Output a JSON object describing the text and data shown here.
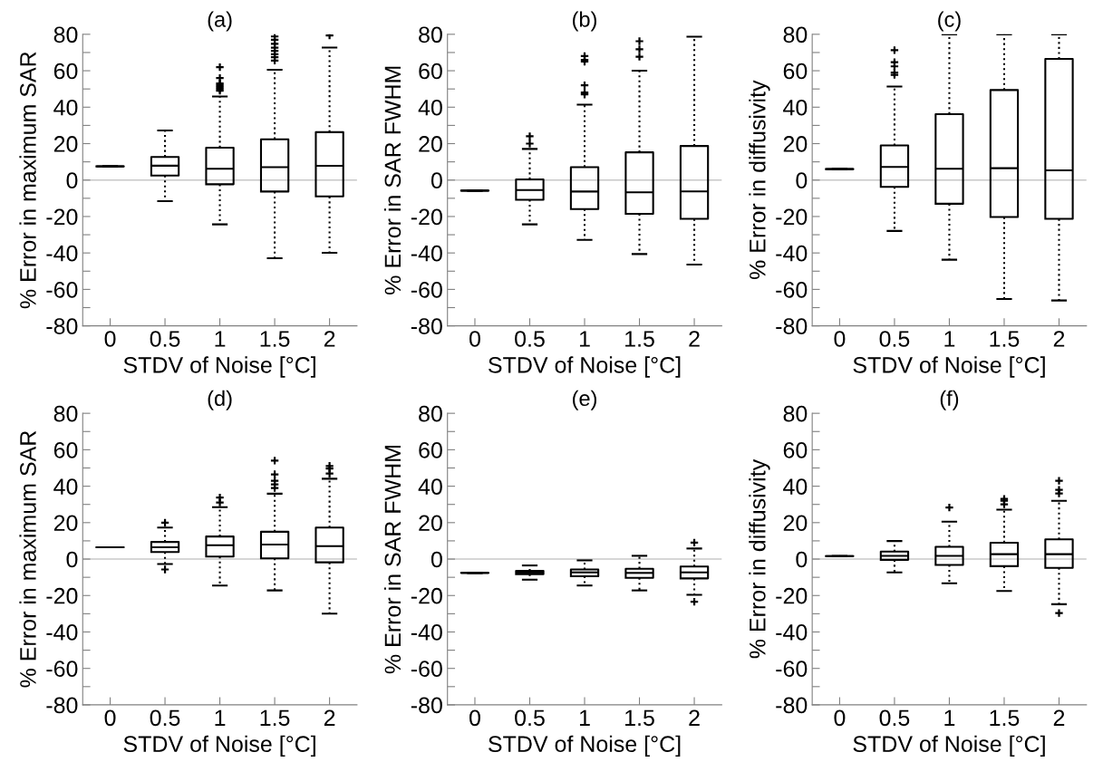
{
  "chart_data": [
    {
      "type": "box",
      "title": "(a)",
      "xlabel": "STDV of Noise [°C]",
      "ylabel": "% Error in maximum SAR",
      "categories": [
        "0",
        "0.5",
        "1",
        "1.5",
        "2"
      ],
      "ylim": [
        -80,
        80
      ],
      "yticks": [
        -80,
        {
          "value": -70,
          "label": null
        },
        -60,
        {
          "value": -50,
          "label": null
        },
        -40,
        {
          "value": -30,
          "label": null
        },
        -20,
        {
          "value": -10,
          "label": null
        },
        0,
        {
          "value": 10,
          "label": null
        },
        20,
        {
          "value": 30,
          "label": null
        },
        40,
        {
          "value": 50,
          "label": null
        },
        60,
        {
          "value": 70,
          "label": null
        },
        80
      ],
      "ref_lines": [
        {
          "axis": "y",
          "value": 0,
          "color": "#c8c8c8"
        }
      ],
      "marker": "cross",
      "grid": false,
      "boxes": [
        {
          "low": 7.5,
          "q1": 7.5,
          "median": 7.5,
          "q3": 7.5,
          "high": 7.5
        },
        {
          "low": -11.6,
          "q1": 2.5,
          "median": 7.9,
          "q3": 12.7,
          "high": 27.2
        },
        {
          "low": -24.3,
          "q1": -2.3,
          "median": 6.2,
          "q3": 17.8,
          "high": 45.9,
          "outliers": [
            49,
            50,
            51,
            52,
            53,
            56,
            62
          ]
        },
        {
          "low": -42.9,
          "q1": -6.3,
          "median": 7.1,
          "q3": 22.4,
          "high": 60.5,
          "outliers": [
            65.6,
            67.4,
            69.1,
            70.9,
            72.7,
            74.8,
            77,
            78.8
          ]
        },
        {
          "low": -39.9,
          "q1": -9,
          "median": 7.8,
          "q3": 26.3,
          "high": 72.7,
          "outliers": [
            79.4
          ]
        }
      ]
    },
    {
      "type": "box",
      "title": "(b)",
      "xlabel": "STDV of Noise [°C]",
      "ylabel": "% Error in SAR FWHM",
      "categories": [
        "0",
        "0.5",
        "1",
        "1.5",
        "2"
      ],
      "ylim": [
        -80,
        80
      ],
      "yticks": [
        -80,
        {
          "value": -70,
          "label": null
        },
        -60,
        {
          "value": -50,
          "label": null
        },
        -40,
        {
          "value": -30,
          "label": null
        },
        -20,
        {
          "value": -10,
          "label": null
        },
        0,
        {
          "value": 10,
          "label": null
        },
        20,
        {
          "value": 30,
          "label": null
        },
        40,
        {
          "value": 50,
          "label": null
        },
        60,
        {
          "value": 70,
          "label": null
        },
        80
      ],
      "ref_lines": [
        {
          "axis": "y",
          "value": 0,
          "color": "#c8c8c8"
        }
      ],
      "marker": "cross",
      "grid": false,
      "boxes": [
        {
          "low": -5.8,
          "q1": -5.8,
          "median": -5.8,
          "q3": -5.8,
          "high": -5.8
        },
        {
          "low": -24.3,
          "q1": -10.8,
          "median": -5.5,
          "q3": 0.4,
          "high": 17.1,
          "outliers": [
            20,
            24
          ]
        },
        {
          "low": -32.8,
          "q1": -15.9,
          "median": -6.3,
          "q3": 7.1,
          "high": 41.4,
          "outliers": [
            47,
            48,
            52,
            65,
            66,
            68
          ]
        },
        {
          "low": -40.6,
          "q1": -18.5,
          "median": -6.7,
          "q3": 15.2,
          "high": 60,
          "outliers": [
            67.7,
            71.8,
            76.2
          ]
        },
        {
          "low": -46.4,
          "q1": -21.3,
          "median": -6.2,
          "q3": 18.7,
          "high": 78.7
        }
      ]
    },
    {
      "type": "box",
      "title": "(c)",
      "xlabel": "STDV of Noise [°C]",
      "ylabel": "% Error in diffusivity",
      "categories": [
        "0",
        "0.5",
        "1",
        "1.5",
        "2"
      ],
      "ylim": [
        -80,
        80
      ],
      "yticks": [
        -80,
        {
          "value": -70,
          "label": null
        },
        -60,
        {
          "value": -50,
          "label": null
        },
        -40,
        {
          "value": -30,
          "label": null
        },
        -20,
        {
          "value": -10,
          "label": null
        },
        0,
        {
          "value": 10,
          "label": null
        },
        20,
        {
          "value": 30,
          "label": null
        },
        40,
        {
          "value": 50,
          "label": null
        },
        60,
        {
          "value": 70,
          "label": null
        },
        80
      ],
      "ref_lines": [
        {
          "axis": "y",
          "value": 0,
          "color": "#c8c8c8"
        }
      ],
      "marker": "cross",
      "grid": false,
      "boxes": [
        {
          "low": 6,
          "q1": 6,
          "median": 6,
          "q3": 6,
          "high": 6
        },
        {
          "low": -27.9,
          "q1": -3.7,
          "median": 7.2,
          "q3": 19,
          "high": 51.3,
          "outliers": [
            57.7,
            59,
            62.4,
            64.7,
            71.3
          ]
        },
        {
          "low": -43.7,
          "q1": -13,
          "median": 6.2,
          "q3": 36.2,
          "high": 80
        },
        {
          "low": -65.3,
          "q1": -20.3,
          "median": 6.5,
          "q3": 49.4,
          "high": 80
        },
        {
          "low": -66.1,
          "q1": -21.3,
          "median": 5.3,
          "q3": 66.5,
          "high": 80
        }
      ]
    },
    {
      "type": "box",
      "title": "(d)",
      "xlabel": "STDV of Noise [°C]",
      "ylabel": "% Error in maximum SAR",
      "categories": [
        "0",
        "0.5",
        "1",
        "1.5",
        "2"
      ],
      "ylim": [
        -80,
        80
      ],
      "yticks": [
        -80,
        {
          "value": -70,
          "label": null
        },
        -60,
        {
          "value": -50,
          "label": null
        },
        -40,
        {
          "value": -30,
          "label": null
        },
        -20,
        {
          "value": -10,
          "label": null
        },
        0,
        {
          "value": 10,
          "label": null
        },
        20,
        {
          "value": 30,
          "label": null
        },
        40,
        {
          "value": 50,
          "label": null
        },
        60,
        {
          "value": 70,
          "label": null
        },
        80
      ],
      "ref_lines": [
        {
          "axis": "y",
          "value": 0,
          "color": "#c8c8c8"
        }
      ],
      "marker": "cross",
      "grid": false,
      "boxes": [
        {
          "low": 6.5,
          "q1": 6.5,
          "median": 6.5,
          "q3": 6.5,
          "high": 6.5
        },
        {
          "low": -2.7,
          "q1": 3.9,
          "median": 6.5,
          "q3": 9.4,
          "high": 17.3,
          "outliers": [
            20,
            -5.7
          ]
        },
        {
          "low": -14.5,
          "q1": 1.4,
          "median": 7.6,
          "q3": 12.4,
          "high": 28.5,
          "outliers": [
            31,
            33.8
          ]
        },
        {
          "low": -17.2,
          "q1": 0.4,
          "median": 8,
          "q3": 15,
          "high": 35.9,
          "outliers": [
            39,
            41,
            43,
            46.5,
            54
          ]
        },
        {
          "low": -29.9,
          "q1": -1.8,
          "median": 7.1,
          "q3": 17.3,
          "high": 44.1,
          "outliers": [
            46.9,
            49.7,
            51.1
          ]
        }
      ]
    },
    {
      "type": "box",
      "title": "(e)",
      "xlabel": "STDV of Noise [°C]",
      "ylabel": "% Error in SAR FWHM",
      "categories": [
        "0",
        "0.5",
        "1",
        "1.5",
        "2"
      ],
      "ylim": [
        -80,
        80
      ],
      "yticks": [
        -80,
        {
          "value": -70,
          "label": null
        },
        -60,
        {
          "value": -50,
          "label": null
        },
        -40,
        {
          "value": -30,
          "label": null
        },
        -20,
        {
          "value": -10,
          "label": null
        },
        0,
        {
          "value": 10,
          "label": null
        },
        20,
        {
          "value": 30,
          "label": null
        },
        40,
        {
          "value": 50,
          "label": null
        },
        60,
        {
          "value": 70,
          "label": null
        },
        80
      ],
      "ref_lines": [
        {
          "axis": "y",
          "value": 0,
          "color": "#c8c8c8"
        }
      ],
      "marker": "cross",
      "grid": false,
      "boxes": [
        {
          "low": -7.6,
          "q1": -7.6,
          "median": -7.6,
          "q3": -7.6,
          "high": -7.6
        },
        {
          "low": -11.3,
          "q1": -8.3,
          "median": -7.4,
          "q3": -6.5,
          "high": -3.5
        },
        {
          "low": -14.5,
          "q1": -9.4,
          "median": -7.3,
          "q3": -5.7,
          "high": -0.7
        },
        {
          "low": -17.2,
          "q1": -10.3,
          "median": -7.6,
          "q3": -5.3,
          "high": 1.8
        },
        {
          "low": -19.6,
          "q1": -10.6,
          "median": -7.3,
          "q3": -4.1,
          "high": 5.8,
          "outliers": [
            9,
            -23.4
          ]
        }
      ]
    },
    {
      "type": "box",
      "title": "(f)",
      "xlabel": "STDV of Noise [°C]",
      "ylabel": "% Error in diffusivity",
      "categories": [
        "0",
        "0.5",
        "1",
        "1.5",
        "2"
      ],
      "ylim": [
        -80,
        80
      ],
      "yticks": [
        -80,
        {
          "value": -70,
          "label": null
        },
        -60,
        {
          "value": -50,
          "label": null
        },
        -40,
        {
          "value": -30,
          "label": null
        },
        -20,
        {
          "value": -10,
          "label": null
        },
        0,
        {
          "value": 10,
          "label": null
        },
        20,
        {
          "value": 30,
          "label": null
        },
        40,
        {
          "value": 50,
          "label": null
        },
        60,
        {
          "value": 70,
          "label": null
        },
        80
      ],
      "ref_lines": [
        {
          "axis": "y",
          "value": 0,
          "color": "#c8c8c8"
        }
      ],
      "marker": "cross",
      "grid": false,
      "boxes": [
        {
          "low": 1.6,
          "q1": 1.6,
          "median": 1.6,
          "q3": 1.6,
          "high": 1.6
        },
        {
          "low": -7.3,
          "q1": -0.4,
          "median": 1.8,
          "q3": 4.1,
          "high": 9.9
        },
        {
          "low": -13.3,
          "q1": -3.2,
          "median": 1.8,
          "q3": 6.7,
          "high": 20.5,
          "outliers": [
            28.3
          ]
        },
        {
          "low": -17.5,
          "q1": -3.9,
          "median": 2.7,
          "q3": 9,
          "high": 27.1,
          "outliers": [
            30,
            32,
            33
          ]
        },
        {
          "low": -24.8,
          "q1": -4.8,
          "median": 2.7,
          "q3": 10.8,
          "high": 32,
          "outliers": [
            36,
            38,
            43,
            -29.6
          ]
        }
      ]
    }
  ]
}
